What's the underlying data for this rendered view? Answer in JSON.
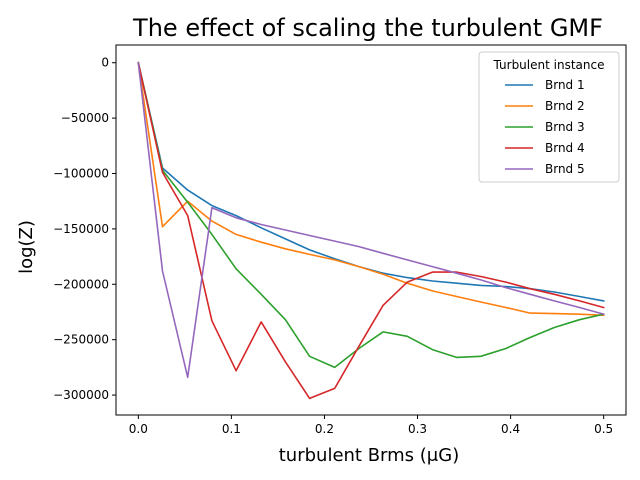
{
  "chart_data": {
    "type": "line",
    "title": "The effect of scaling the turbulent GMF",
    "xlabel": "turbulent Brms (μG)",
    "ylabel": "log(Z)",
    "xlim": [
      -0.024,
      0.524
    ],
    "ylim": [
      -318000,
      16000
    ],
    "xticks": [
      0.0,
      0.1,
      0.2,
      0.3,
      0.4,
      0.5
    ],
    "xtick_labels": [
      "0.0",
      "0.1",
      "0.2",
      "0.3",
      "0.4",
      "0.5"
    ],
    "yticks": [
      0,
      -50000,
      -100000,
      -150000,
      -200000,
      -250000,
      -300000
    ],
    "ytick_labels": [
      "0",
      "−50000",
      "−100000",
      "−150000",
      "−200000",
      "−250000",
      "−300000"
    ],
    "grid": false,
    "legend": {
      "title": "Turbulent instance",
      "position": "top-right"
    },
    "series": [
      {
        "name": "Brnd 1",
        "color": "#1f77b4",
        "x": [
          0.0,
          0.026,
          0.053,
          0.079,
          0.105,
          0.132,
          0.158,
          0.184,
          0.211,
          0.237,
          0.263,
          0.289,
          0.316,
          0.342,
          0.368,
          0.395,
          0.421,
          0.447,
          0.474,
          0.5
        ],
        "y": [
          0,
          -95000,
          -115000,
          -129000,
          -138000,
          -149000,
          -159000,
          -169000,
          -177000,
          -184000,
          -190000,
          -194000,
          -197000,
          -199000,
          -201000,
          -202000,
          -204000,
          -207000,
          -211000,
          -215000
        ]
      },
      {
        "name": "Brnd 2",
        "color": "#ff7f0e",
        "x": [
          0.0,
          0.026,
          0.053,
          0.079,
          0.105,
          0.132,
          0.158,
          0.184,
          0.211,
          0.237,
          0.263,
          0.289,
          0.316,
          0.342,
          0.368,
          0.395,
          0.421,
          0.447,
          0.474,
          0.5
        ],
        "y": [
          0,
          -148000,
          -125000,
          -143000,
          -155000,
          -162000,
          -168000,
          -173000,
          -178000,
          -184000,
          -191000,
          -199000,
          -206000,
          -211000,
          -216000,
          -221000,
          -226000,
          -226500,
          -227000,
          -228000
        ]
      },
      {
        "name": "Brnd 3",
        "color": "#2ca02c",
        "x": [
          0.0,
          0.026,
          0.053,
          0.079,
          0.105,
          0.132,
          0.158,
          0.184,
          0.211,
          0.237,
          0.263,
          0.289,
          0.316,
          0.342,
          0.368,
          0.395,
          0.421,
          0.447,
          0.474,
          0.5
        ],
        "y": [
          0,
          -97000,
          -126000,
          -155000,
          -186000,
          -209000,
          -232000,
          -265000,
          -275000,
          -258000,
          -243000,
          -247000,
          -259000,
          -266000,
          -265000,
          -258000,
          -248000,
          -239000,
          -232000,
          -227000
        ]
      },
      {
        "name": "Brnd 4",
        "color": "#d62728",
        "x": [
          0.0,
          0.026,
          0.053,
          0.079,
          0.105,
          0.132,
          0.158,
          0.184,
          0.211,
          0.237,
          0.263,
          0.289,
          0.316,
          0.342,
          0.368,
          0.395,
          0.421,
          0.447,
          0.474,
          0.5
        ],
        "y": [
          0,
          -99000,
          -138000,
          -233000,
          -278000,
          -234000,
          -270000,
          -303000,
          -294000,
          -256000,
          -219000,
          -198000,
          -189000,
          -189000,
          -193000,
          -198000,
          -204000,
          -209000,
          -215000,
          -221000
        ]
      },
      {
        "name": "Brnd 5",
        "color": "#9467bd",
        "x": [
          0.0,
          0.026,
          0.053,
          0.079,
          0.105,
          0.132,
          0.158,
          0.184,
          0.211,
          0.237,
          0.263,
          0.289,
          0.316,
          0.342,
          0.368,
          0.395,
          0.421,
          0.447,
          0.474,
          0.5
        ],
        "y": [
          0,
          -188000,
          -284000,
          -131000,
          -140000,
          -146000,
          -151000,
          -156000,
          -161000,
          -166000,
          -172000,
          -178000,
          -184000,
          -190000,
          -196000,
          -203000,
          -209000,
          -215000,
          -221000,
          -227000
        ]
      }
    ]
  }
}
